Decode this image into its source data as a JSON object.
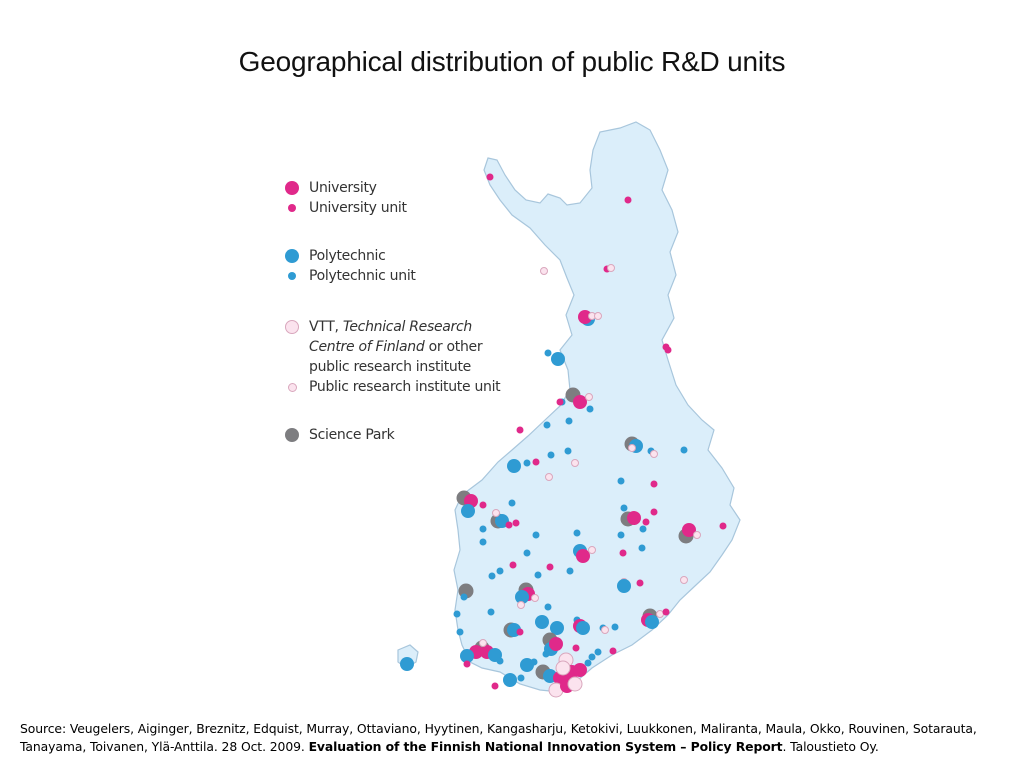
{
  "title": "Geographical distribution of public R&D units",
  "legend": {
    "university": "University",
    "university_unit": "University unit",
    "polytechnic": "Polytechnic",
    "polytechnic_unit": "Polytechnic unit",
    "vtt_prefix": "VTT, ",
    "vtt_italic_1": "Technical Research",
    "vtt_italic_2": "Centre of Finland",
    "vtt_suffix": " or other",
    "vtt_line3": "public research institute",
    "public_research_unit": "Public research institute unit",
    "science_park": "Science Park"
  },
  "colors": {
    "university": "#e0298a",
    "polytechnic": "#2f9bd3",
    "vtt_fill": "#fbe3ee",
    "vtt_stroke": "#d9a7bd",
    "science_park": "#7d7d80",
    "land": "#dbeefa",
    "land_stroke": "#a8c6dc"
  },
  "source": {
    "text1": "Source: Veugelers, Aiginger, Breznitz, Edquist, Murray, Ottaviano, Hyytinen, Kangasharju, Ketokivi, Luukkonen, Maliranta, Maula, Okko, Rouvinen, Sotarauta, Tanayama, Toivanen, Ylä-Anttila. 28 Oct. 2009. ",
    "bold": "Evaluation of the Finnish National Innovation System – Policy Report",
    "text2": ". Taloustieto Oy."
  }
}
